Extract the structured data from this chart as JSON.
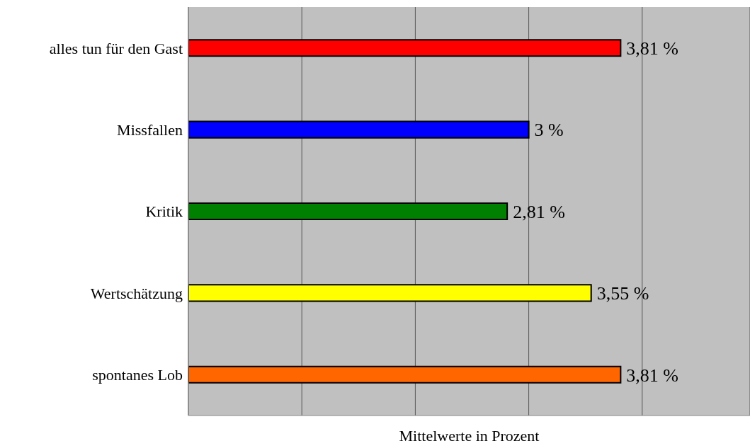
{
  "chart_data": {
    "type": "bar",
    "orientation": "horizontal",
    "xlabel": "Mittelwerte in Prozent",
    "categories": [
      "alles tun für den Gast",
      "Missfallen",
      "Kritik",
      "Wertschätzung",
      "spontanes Lob"
    ],
    "values": [
      3.81,
      3,
      2.81,
      3.55,
      3.81
    ],
    "colors": [
      "#ff0000",
      "#0000ff",
      "#008000",
      "#ffff00",
      "#ff6600"
    ],
    "value_labels": [
      "3,81 %",
      "3 %",
      "2,81 %",
      "3,55 %",
      "3,81 %"
    ],
    "xlim": [
      0,
      4.95
    ],
    "xticks": [
      {
        "value": 0,
        "label": null
      },
      {
        "value": 1,
        "label": null
      },
      {
        "value": 2,
        "label": null
      },
      {
        "value": 3,
        "label": null
      },
      {
        "value": 4,
        "label": null
      }
    ],
    "grid": "x",
    "tick_labels": "y",
    "legend": false
  }
}
